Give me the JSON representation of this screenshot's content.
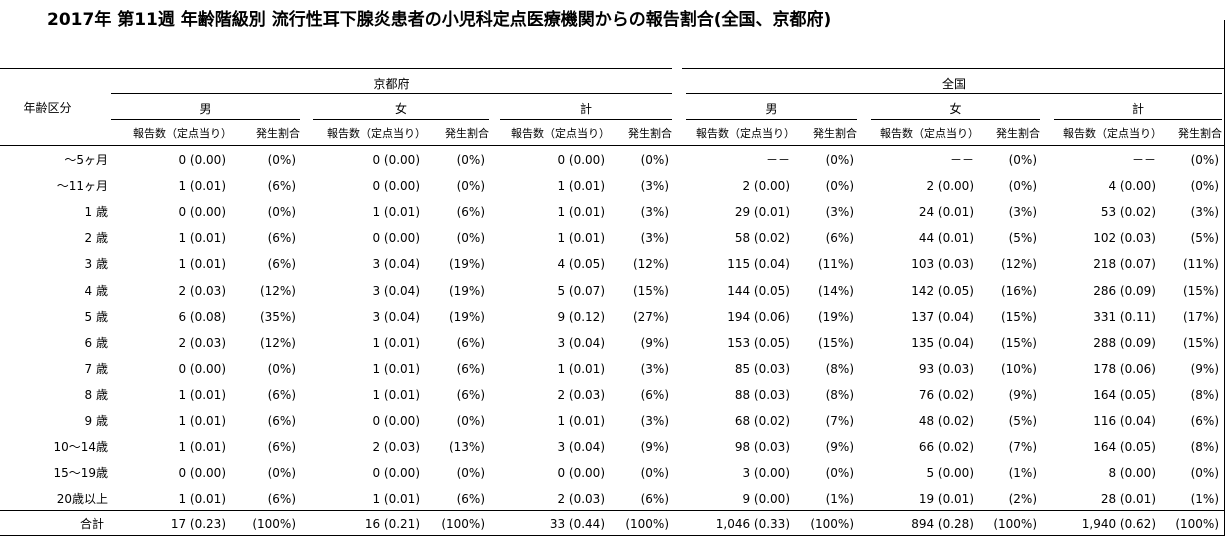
{
  "title": "2017年 第11週 年齢階級別 流行性耳下腺炎患者の小児科定点医療機関からの報告割合(全国、京都府)",
  "header": {
    "age_col": "年齢区分",
    "regions": [
      "京都府",
      "全国"
    ],
    "sexes": [
      "男",
      "女",
      "計"
    ],
    "report_label": "報告数（定点当り）",
    "rate_label": "発生割合"
  },
  "rows": [
    {
      "age": "～5ヶ月",
      "cells": [
        [
          "0 (0.00)",
          "(0%)"
        ],
        [
          "0 (0.00)",
          "(0%)"
        ],
        [
          "0 (0.00)",
          "(0%)"
        ],
        [
          "－－",
          "(0%)"
        ],
        [
          "－－",
          "(0%)"
        ],
        [
          "－－",
          "(0%)"
        ]
      ]
    },
    {
      "age": "～11ヶ月",
      "cells": [
        [
          "1 (0.01)",
          "(6%)"
        ],
        [
          "0 (0.00)",
          "(0%)"
        ],
        [
          "1 (0.01)",
          "(3%)"
        ],
        [
          "2 (0.00)",
          "(0%)"
        ],
        [
          "2 (0.00)",
          "(0%)"
        ],
        [
          "4 (0.00)",
          "(0%)"
        ]
      ]
    },
    {
      "age": "1 歳",
      "cells": [
        [
          "0 (0.00)",
          "(0%)"
        ],
        [
          "1 (0.01)",
          "(6%)"
        ],
        [
          "1 (0.01)",
          "(3%)"
        ],
        [
          "29 (0.01)",
          "(3%)"
        ],
        [
          "24 (0.01)",
          "(3%)"
        ],
        [
          "53 (0.02)",
          "(3%)"
        ]
      ]
    },
    {
      "age": "2 歳",
      "cells": [
        [
          "1 (0.01)",
          "(6%)"
        ],
        [
          "0 (0.00)",
          "(0%)"
        ],
        [
          "1 (0.01)",
          "(3%)"
        ],
        [
          "58 (0.02)",
          "(6%)"
        ],
        [
          "44 (0.01)",
          "(5%)"
        ],
        [
          "102 (0.03)",
          "(5%)"
        ]
      ]
    },
    {
      "age": "3 歳",
      "cells": [
        [
          "1 (0.01)",
          "(6%)"
        ],
        [
          "3 (0.04)",
          "(19%)"
        ],
        [
          "4 (0.05)",
          "(12%)"
        ],
        [
          "115 (0.04)",
          "(11%)"
        ],
        [
          "103 (0.03)",
          "(12%)"
        ],
        [
          "218 (0.07)",
          "(11%)"
        ]
      ]
    },
    {
      "age": "4 歳",
      "cells": [
        [
          "2 (0.03)",
          "(12%)"
        ],
        [
          "3 (0.04)",
          "(19%)"
        ],
        [
          "5 (0.07)",
          "(15%)"
        ],
        [
          "144 (0.05)",
          "(14%)"
        ],
        [
          "142 (0.05)",
          "(16%)"
        ],
        [
          "286 (0.09)",
          "(15%)"
        ]
      ]
    },
    {
      "age": "5 歳",
      "cells": [
        [
          "6 (0.08)",
          "(35%)"
        ],
        [
          "3 (0.04)",
          "(19%)"
        ],
        [
          "9 (0.12)",
          "(27%)"
        ],
        [
          "194 (0.06)",
          "(19%)"
        ],
        [
          "137 (0.04)",
          "(15%)"
        ],
        [
          "331 (0.11)",
          "(17%)"
        ]
      ]
    },
    {
      "age": "6 歳",
      "cells": [
        [
          "2 (0.03)",
          "(12%)"
        ],
        [
          "1 (0.01)",
          "(6%)"
        ],
        [
          "3 (0.04)",
          "(9%)"
        ],
        [
          "153 (0.05)",
          "(15%)"
        ],
        [
          "135 (0.04)",
          "(15%)"
        ],
        [
          "288 (0.09)",
          "(15%)"
        ]
      ]
    },
    {
      "age": "7 歳",
      "cells": [
        [
          "0 (0.00)",
          "(0%)"
        ],
        [
          "1 (0.01)",
          "(6%)"
        ],
        [
          "1 (0.01)",
          "(3%)"
        ],
        [
          "85 (0.03)",
          "(8%)"
        ],
        [
          "93 (0.03)",
          "(10%)"
        ],
        [
          "178 (0.06)",
          "(9%)"
        ]
      ]
    },
    {
      "age": "8 歳",
      "cells": [
        [
          "1 (0.01)",
          "(6%)"
        ],
        [
          "1 (0.01)",
          "(6%)"
        ],
        [
          "2 (0.03)",
          "(6%)"
        ],
        [
          "88 (0.03)",
          "(8%)"
        ],
        [
          "76 (0.02)",
          "(9%)"
        ],
        [
          "164 (0.05)",
          "(8%)"
        ]
      ]
    },
    {
      "age": "9 歳",
      "cells": [
        [
          "1 (0.01)",
          "(6%)"
        ],
        [
          "0 (0.00)",
          "(0%)"
        ],
        [
          "1 (0.01)",
          "(3%)"
        ],
        [
          "68 (0.02)",
          "(7%)"
        ],
        [
          "48 (0.02)",
          "(5%)"
        ],
        [
          "116 (0.04)",
          "(6%)"
        ]
      ]
    },
    {
      "age": "10～14歳",
      "cells": [
        [
          "1 (0.01)",
          "(6%)"
        ],
        [
          "2 (0.03)",
          "(13%)"
        ],
        [
          "3 (0.04)",
          "(9%)"
        ],
        [
          "98 (0.03)",
          "(9%)"
        ],
        [
          "66 (0.02)",
          "(7%)"
        ],
        [
          "164 (0.05)",
          "(8%)"
        ]
      ]
    },
    {
      "age": "15～19歳",
      "cells": [
        [
          "0 (0.00)",
          "(0%)"
        ],
        [
          "0 (0.00)",
          "(0%)"
        ],
        [
          "0 (0.00)",
          "(0%)"
        ],
        [
          "3 (0.00)",
          "(0%)"
        ],
        [
          "5 (0.00)",
          "(1%)"
        ],
        [
          "8 (0.00)",
          "(0%)"
        ]
      ]
    },
    {
      "age": "20歳以上",
      "cells": [
        [
          "1 (0.01)",
          "(6%)"
        ],
        [
          "1 (0.01)",
          "(6%)"
        ],
        [
          "2 (0.03)",
          "(6%)"
        ],
        [
          "9 (0.00)",
          "(1%)"
        ],
        [
          "19 (0.01)",
          "(2%)"
        ],
        [
          "28 (0.01)",
          "(1%)"
        ]
      ]
    }
  ],
  "total": {
    "age": "合計",
    "cells": [
      [
        "17 (0.23)",
        "(100%)"
      ],
      [
        "16 (0.21)",
        "(100%)"
      ],
      [
        "33 (0.44)",
        "(100%)"
      ],
      [
        "1,046 (0.33)",
        "(100%)"
      ],
      [
        "894 (0.28)",
        "(100%)"
      ],
      [
        "1,940 (0.62)",
        "(100%)"
      ]
    ]
  }
}
